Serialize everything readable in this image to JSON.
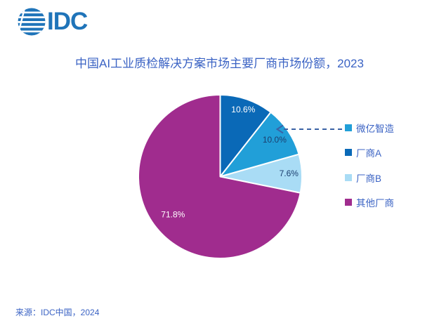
{
  "logo": {
    "text": "IDC"
  },
  "title": "中国AI工业质检解决方案市场主要厂商市场份额，2023",
  "source": "来源：IDC中国，2024",
  "chart_data": {
    "type": "pie",
    "title": "中国AI工业质检解决方案市场主要厂商市场份额，2023",
    "unit": "%",
    "slices": [
      {
        "label": "厂商A",
        "value": 10.6,
        "display": "10.6%",
        "color": "#0a69b7",
        "label_color": "#ffffff"
      },
      {
        "label": "微亿智造",
        "value": 10.0,
        "display": "10.0%",
        "color": "#219fd8",
        "label_color": "#1b3e6e"
      },
      {
        "label": "厂商B",
        "value": 7.6,
        "display": "7.6%",
        "color": "#a9dcf5",
        "label_color": "#1b3e6e"
      },
      {
        "label": "其他厂商",
        "value": 71.8,
        "display": "71.8%",
        "color": "#a02c8e",
        "label_color": "#ffffff"
      }
    ],
    "legend": [
      {
        "label": "微亿智造",
        "color": "#219fd8"
      },
      {
        "label": "厂商A",
        "color": "#0a69b7"
      },
      {
        "label": "厂商B",
        "color": "#a9dcf5"
      },
      {
        "label": "其他厂商",
        "color": "#a02c8e"
      }
    ],
    "legend_position": "right",
    "annotation": {
      "type": "dashed-leader-arrow",
      "target": "微亿智造",
      "color": "#3b62a5"
    }
  }
}
